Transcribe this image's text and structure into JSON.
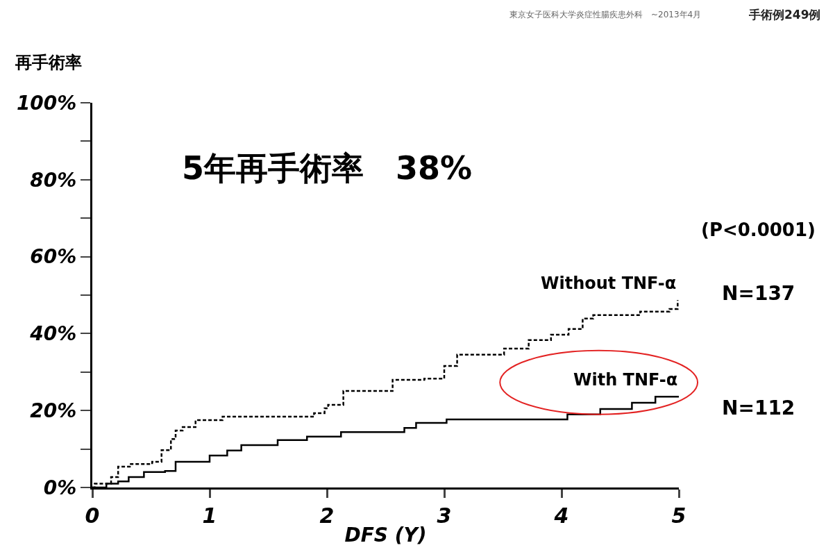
{
  "chart_data": {
    "type": "step",
    "title": "5年再手術率　38%",
    "xlabel": "DFS (Y)",
    "ylabel": "再手術率",
    "annotations": [
      "東京女子医科大学炎症性腸疾患外科　~2013年4月",
      "手術例249例",
      "(P<0.0001)",
      "N=137",
      "N=112"
    ],
    "series": [
      {
        "name": "Without TNF-α",
        "color": "#000000",
        "line_style": "dashed",
        "x": [
          0,
          0.02,
          0.16,
          0.22,
          0.32,
          0.51,
          0.59,
          0.67,
          0.71,
          0.77,
          0.88,
          1.11,
          1.89,
          1.98,
          2.01,
          2.14,
          2.56,
          2.83,
          3.0,
          3.11,
          3.51,
          3.72,
          3.91,
          4.06,
          4.18,
          4.27,
          4.67,
          4.92,
          4.99
        ],
        "values": [
          0,
          1,
          2.7,
          5.4,
          6.1,
          6.7,
          9.7,
          12.6,
          14.8,
          15.7,
          17.5,
          18.4,
          19.3,
          20.6,
          21.5,
          25.1,
          28,
          28.3,
          31.6,
          34.5,
          36.1,
          38.3,
          39.7,
          41.2,
          43.9,
          44.8,
          45.7,
          46.4,
          48.7
        ]
      },
      {
        "name": "With TNF-α",
        "color": "#000000",
        "line_style": "solid",
        "x": [
          0,
          0.12,
          0.22,
          0.31,
          0.44,
          0.62,
          0.71,
          1.0,
          1.15,
          1.27,
          1.58,
          1.83,
          2.12,
          2.66,
          2.76,
          3.02,
          4.05,
          4.33,
          4.6,
          4.8,
          5
        ],
        "values": [
          0,
          1,
          1.6,
          2.7,
          4,
          4.3,
          6.7,
          8.3,
          9.6,
          11,
          12.3,
          13.2,
          14.4,
          15.5,
          16.8,
          17.7,
          19,
          20.4,
          22,
          23.6,
          23.6
        ]
      }
    ],
    "xlim": [
      0,
      5
    ],
    "xticks": [
      0,
      1,
      2,
      3,
      4,
      5
    ],
    "ylim": [
      0,
      100
    ],
    "yticks": [
      {
        "value": 0,
        "label": "0%"
      },
      {
        "value": 10,
        "label": null
      },
      {
        "value": 20,
        "label": "20%"
      },
      {
        "value": 30,
        "label": null
      },
      {
        "value": 40,
        "label": "40%"
      },
      {
        "value": 50,
        "label": null
      },
      {
        "value": 60,
        "label": "60%"
      },
      {
        "value": 70,
        "label": null
      },
      {
        "value": 80,
        "label": "80%"
      },
      {
        "value": 90,
        "label": null
      },
      {
        "value": 100,
        "label": "100%"
      }
    ],
    "grid": false,
    "legend": false,
    "marker": "none"
  }
}
